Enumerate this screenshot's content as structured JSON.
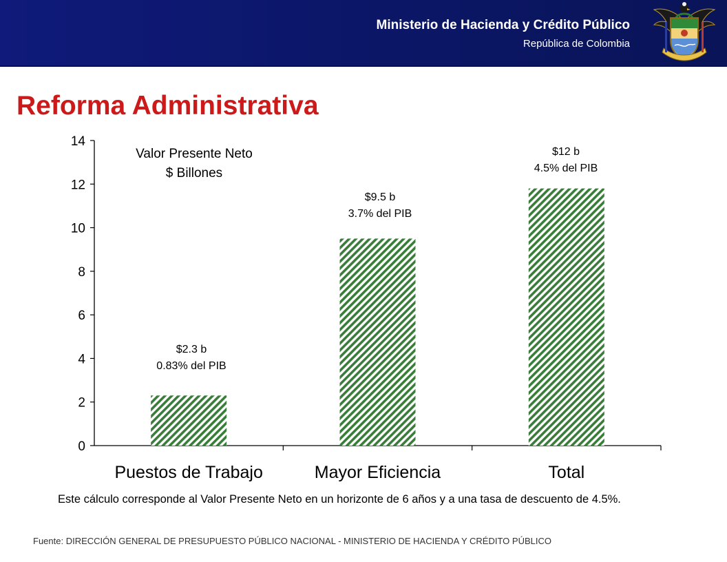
{
  "header": {
    "ministry": "Ministerio de Hacienda y Crédito Público",
    "country": "República de Colombia"
  },
  "title": "Reforma Administrativa",
  "chart_data": {
    "type": "bar",
    "categories": [
      "Puestos de Trabajo",
      "Mayor Eficiencia",
      "Total"
    ],
    "values": [
      2.3,
      9.5,
      11.8
    ],
    "ylim": [
      0,
      14
    ],
    "yticks": [
      0,
      2,
      4,
      6,
      8,
      10,
      12,
      14
    ],
    "chart_label": [
      "Valor Presente Neto",
      "$ Billones"
    ],
    "bar_labels": [
      [
        "$2.3 b",
        "0.83% del PIB"
      ],
      [
        "$9.5 b",
        "3.7% del PIB"
      ],
      [
        "$12 b",
        "4.5% del PIB"
      ]
    ],
    "bar_color": "#3a7d3a",
    "grid": false
  },
  "note": "Este cálculo corresponde al Valor Presente Neto en un horizonte de 6 años y a una tasa de descuento de 4.5%.",
  "source": "Fuente: DIRECCIÓN GENERAL DE PRESUPUESTO PÚBLICO NACIONAL -  MINISTERIO DE HACIENDA Y CRÉDITO PÚBLICO"
}
